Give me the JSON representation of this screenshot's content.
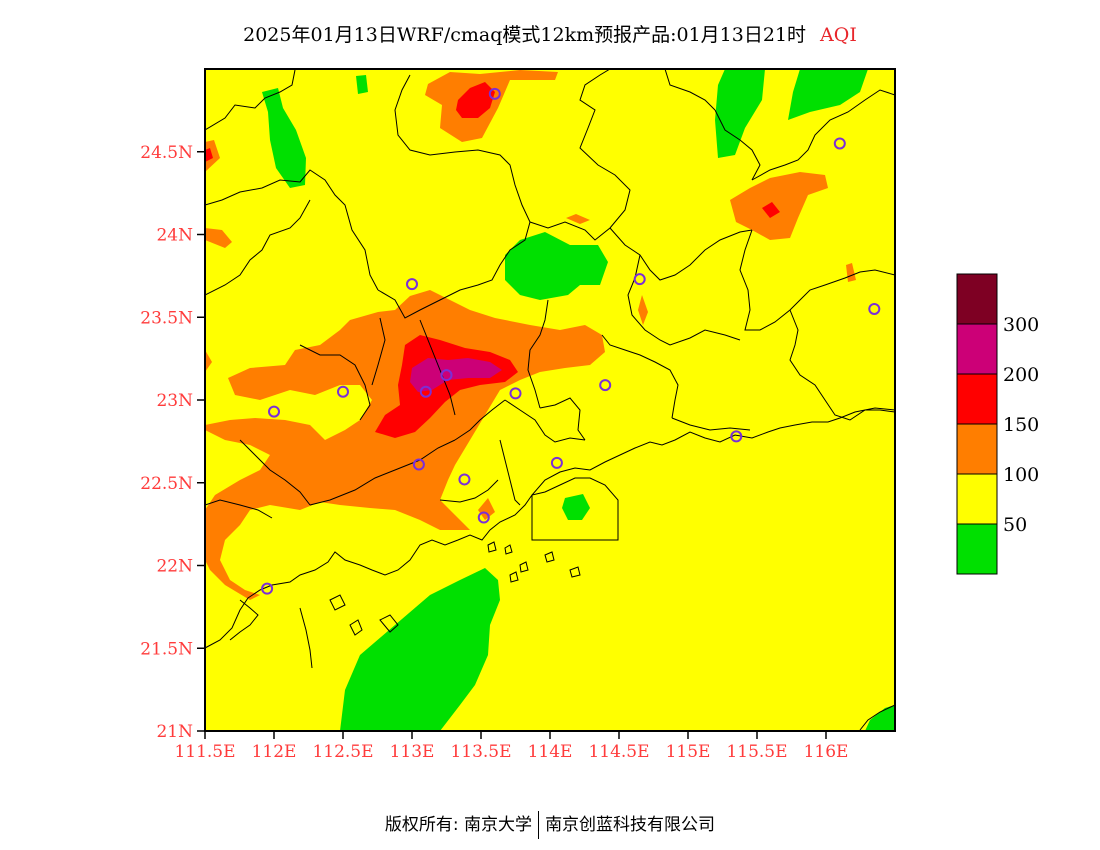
{
  "title": {
    "main": "2025年01月13日WRF/cmaq模式12km预报产品:01月13日21时",
    "variable": "AQI"
  },
  "map": {
    "lon_range": [
      111.5,
      116.5
    ],
    "lat_range": [
      21,
      25
    ],
    "lat_ticks": [
      "21N",
      "21.5N",
      "22N",
      "22.5N",
      "23N",
      "23.5N",
      "24N",
      "24.5N"
    ],
    "lat_values": [
      21,
      21.5,
      22,
      22.5,
      23,
      23.5,
      24,
      24.5
    ],
    "lon_ticks": [
      "111.5E",
      "112E",
      "112.5E",
      "113E",
      "113.5E",
      "114E",
      "114.5E",
      "115E",
      "115.5E",
      "116E"
    ],
    "lon_values": [
      111.5,
      112,
      112.5,
      113,
      113.5,
      114,
      114.5,
      115,
      115.5,
      116
    ],
    "background_color": "#ffff00",
    "station_color": "#7b2fd6",
    "stations": [
      {
        "lon": 113.6,
        "lat": 24.85
      },
      {
        "lon": 116.1,
        "lat": 24.55
      },
      {
        "lon": 114.65,
        "lat": 23.73
      },
      {
        "lon": 113.0,
        "lat": 23.7
      },
      {
        "lon": 116.35,
        "lat": 23.55
      },
      {
        "lon": 112.5,
        "lat": 23.05
      },
      {
        "lon": 112.0,
        "lat": 22.93
      },
      {
        "lon": 113.1,
        "lat": 23.05
      },
      {
        "lon": 113.75,
        "lat": 23.04
      },
      {
        "lon": 114.4,
        "lat": 23.09
      },
      {
        "lon": 115.35,
        "lat": 22.78
      },
      {
        "lon": 114.05,
        "lat": 22.62
      },
      {
        "lon": 113.05,
        "lat": 22.61
      },
      {
        "lon": 113.38,
        "lat": 22.52
      },
      {
        "lon": 113.52,
        "lat": 22.29
      },
      {
        "lon": 111.95,
        "lat": 21.86
      },
      {
        "lon": 113.25,
        "lat": 23.15
      }
    ]
  },
  "legend": {
    "colors": [
      "#00e000",
      "#ffff00",
      "#ff7e00",
      "#ff0000",
      "#cc0077",
      "#7e0023"
    ],
    "labels": [
      "50",
      "100",
      "150",
      "200",
      "300"
    ]
  },
  "footer": {
    "left": "版权所有: 南京大学",
    "right": "南京创蓝科技有限公司"
  }
}
